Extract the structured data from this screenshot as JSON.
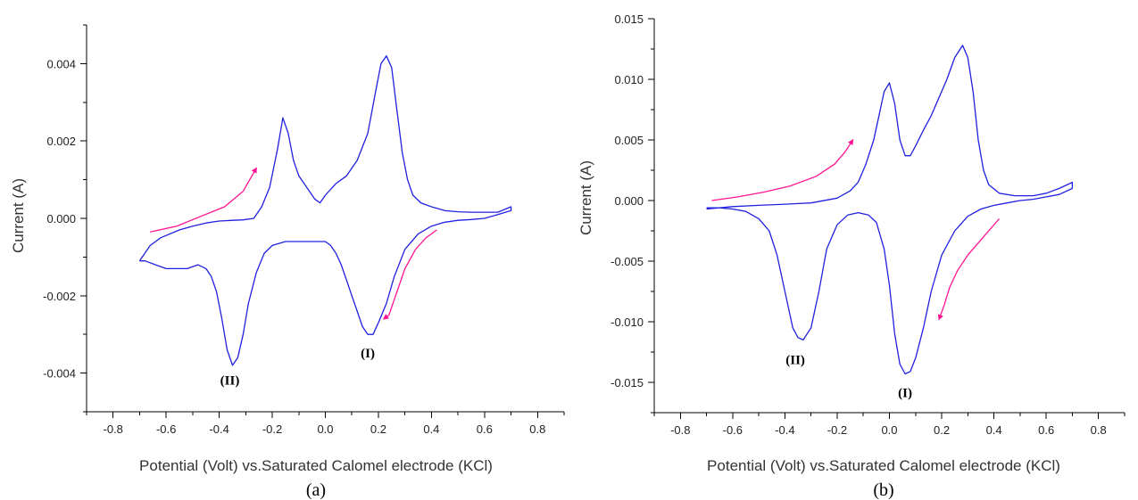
{
  "colors": {
    "curve": "#2020e0",
    "arrow": "#ff1493"
  },
  "chart_data": [
    {
      "type": "line",
      "panel_caption": "(a)",
      "xlabel": "Potential (Volt) vs.Saturated Calomel electrode (KCl)",
      "ylabel": "Current (A)",
      "xlim": [
        -0.9,
        0.9
      ],
      "ylim": [
        -0.005,
        0.005
      ],
      "x_ticks": [
        -0.8,
        -0.6,
        -0.4,
        -0.2,
        0.0,
        0.2,
        0.4,
        0.6,
        0.8
      ],
      "x_tick_labels": [
        "-0.8",
        "-0.6",
        "-0.4",
        "-0.2",
        "0.0",
        "0.2",
        "0.4",
        "0.6",
        "0.8"
      ],
      "y_ticks": [
        -0.004,
        -0.002,
        0.0,
        0.002,
        0.004
      ],
      "y_tick_labels": [
        "-0.004",
        "-0.002",
        "0.000",
        "0.002",
        "0.004"
      ],
      "annotations": [
        {
          "text": "(I)",
          "x": 0.16,
          "y": -0.0036
        },
        {
          "text": "(II)",
          "x": -0.36,
          "y": -0.0043
        }
      ],
      "series": [
        {
          "x": [
            -0.7,
            -0.66,
            -0.62,
            -0.55,
            -0.5,
            -0.45,
            -0.4,
            -0.35,
            -0.31,
            -0.27,
            -0.24,
            -0.21,
            -0.18,
            -0.16,
            -0.14,
            -0.12,
            -0.1,
            -0.08,
            -0.06,
            -0.04,
            -0.02,
            0.0,
            0.04,
            0.08,
            0.12,
            0.16,
            0.19,
            0.21,
            0.23,
            0.25,
            0.27,
            0.29,
            0.31,
            0.33,
            0.36,
            0.4,
            0.45,
            0.5,
            0.55,
            0.6,
            0.65,
            0.7,
            0.7,
            0.65,
            0.6,
            0.55,
            0.5,
            0.45,
            0.4,
            0.35,
            0.3,
            0.26,
            0.23,
            0.2,
            0.18,
            0.16,
            0.14,
            0.12,
            0.1,
            0.08,
            0.06,
            0.04,
            0.02,
            0.0,
            -0.05,
            -0.1,
            -0.15,
            -0.2,
            -0.23,
            -0.26,
            -0.29,
            -0.31,
            -0.33,
            -0.35,
            -0.37,
            -0.39,
            -0.41,
            -0.43,
            -0.45,
            -0.48,
            -0.52,
            -0.56,
            -0.6,
            -0.64,
            -0.68,
            -0.7
          ],
          "y": [
            -0.0011,
            -0.0007,
            -0.0005,
            -0.0003,
            -0.0002,
            -0.00012,
            -7e-05,
            -5e-05,
            -4e-05,
            0.0,
            0.0003,
            0.0008,
            0.0018,
            0.0026,
            0.0022,
            0.0015,
            0.0011,
            0.0009,
            0.0007,
            0.0005,
            0.0004,
            0.0006,
            0.0009,
            0.0011,
            0.0015,
            0.0022,
            0.0033,
            0.004,
            0.0042,
            0.0039,
            0.0028,
            0.0017,
            0.001,
            0.0006,
            0.0004,
            0.0003,
            0.0002,
            0.00017,
            0.00016,
            0.00016,
            0.00016,
            0.0003,
            0.0002,
            0.0001,
            0.0,
            -3e-05,
            -5e-05,
            -0.0001,
            -0.0002,
            -0.0004,
            -0.0008,
            -0.0015,
            -0.0022,
            -0.0027,
            -0.003,
            -0.003,
            -0.0028,
            -0.0024,
            -0.002,
            -0.0016,
            -0.0012,
            -0.0009,
            -0.0007,
            -0.0006,
            -0.0006,
            -0.0006,
            -0.0006,
            -0.0007,
            -0.0009,
            -0.0014,
            -0.0022,
            -0.003,
            -0.0036,
            -0.0038,
            -0.0034,
            -0.0026,
            -0.0019,
            -0.0015,
            -0.0013,
            -0.0012,
            -0.0013,
            -0.0013,
            -0.0013,
            -0.0012,
            -0.0011,
            -0.0011
          ]
        }
      ],
      "arrows": [
        {
          "x": [
            -0.66,
            -0.56,
            -0.47,
            -0.38,
            -0.31,
            -0.26
          ],
          "y": [
            -0.00035,
            -0.0002,
            5e-05,
            0.0003,
            0.0007,
            0.0013
          ]
        },
        {
          "x": [
            0.42,
            0.38,
            0.34,
            0.3,
            0.27,
            0.24,
            0.22
          ],
          "y": [
            -0.0003,
            -0.0005,
            -0.0008,
            -0.0013,
            -0.0019,
            -0.0025,
            -0.0026
          ]
        }
      ]
    },
    {
      "type": "line",
      "panel_caption": "(b)",
      "xlabel": "Potential (Volt) vs.Saturated Calomel electrode (KCl)",
      "ylabel": "Current (A)",
      "xlim": [
        -0.9,
        0.9
      ],
      "ylim": [
        -0.0175,
        0.015
      ],
      "x_ticks": [
        -0.8,
        -0.6,
        -0.4,
        -0.2,
        0.0,
        0.2,
        0.4,
        0.6,
        0.8
      ],
      "x_tick_labels": [
        "-0.8",
        "-0.6",
        "-0.4",
        "-0.2",
        "0.0",
        "0.2",
        "0.4",
        "0.6",
        "0.8"
      ],
      "y_ticks": [
        -0.015,
        -0.01,
        -0.005,
        0.0,
        0.005,
        0.01,
        0.015
      ],
      "y_tick_labels": [
        "-0.015",
        "-0.010",
        "-0.005",
        "0.000",
        "0.005",
        "0.010",
        "0.015"
      ],
      "annotations": [
        {
          "text": "(II)",
          "x": -0.36,
          "y": -0.0135
        },
        {
          "text": "(I)",
          "x": 0.06,
          "y": -0.0162
        }
      ],
      "series": [
        {
          "x": [
            -0.7,
            -0.6,
            -0.5,
            -0.4,
            -0.3,
            -0.2,
            -0.15,
            -0.12,
            -0.09,
            -0.06,
            -0.04,
            -0.02,
            0.0,
            0.02,
            0.04,
            0.06,
            0.08,
            0.1,
            0.13,
            0.16,
            0.19,
            0.22,
            0.25,
            0.28,
            0.3,
            0.32,
            0.34,
            0.36,
            0.38,
            0.42,
            0.48,
            0.55,
            0.6,
            0.65,
            0.7,
            0.7,
            0.65,
            0.6,
            0.55,
            0.5,
            0.45,
            0.4,
            0.35,
            0.3,
            0.25,
            0.2,
            0.16,
            0.13,
            0.1,
            0.08,
            0.06,
            0.04,
            0.02,
            0.0,
            -0.02,
            -0.05,
            -0.08,
            -0.12,
            -0.16,
            -0.2,
            -0.24,
            -0.27,
            -0.3,
            -0.33,
            -0.35,
            -0.37,
            -0.4,
            -0.43,
            -0.46,
            -0.5,
            -0.55,
            -0.6,
            -0.65,
            -0.7
          ],
          "y": [
            -0.0007,
            -0.0005,
            -0.0004,
            -0.0003,
            -0.0002,
            0.0002,
            0.0008,
            0.0015,
            0.003,
            0.005,
            0.007,
            0.009,
            0.0097,
            0.008,
            0.005,
            0.0037,
            0.0037,
            0.0045,
            0.0058,
            0.007,
            0.0085,
            0.01,
            0.0118,
            0.0128,
            0.0118,
            0.009,
            0.005,
            0.0025,
            0.0013,
            0.0006,
            0.0004,
            0.0004,
            0.0006,
            0.001,
            0.0015,
            0.001,
            0.0005,
            0.0003,
            0.0001,
            0.0,
            -0.0002,
            -0.0004,
            -0.0007,
            -0.0013,
            -0.0025,
            -0.0045,
            -0.0075,
            -0.0105,
            -0.013,
            -0.0141,
            -0.0143,
            -0.0135,
            -0.011,
            -0.007,
            -0.004,
            -0.0018,
            -0.0012,
            -0.001,
            -0.0012,
            -0.002,
            -0.004,
            -0.0075,
            -0.0105,
            -0.0115,
            -0.0113,
            -0.0105,
            -0.0075,
            -0.0045,
            -0.0025,
            -0.0015,
            -0.0009,
            -0.0007,
            -0.0006,
            -0.0006
          ]
        }
      ],
      "arrows": [
        {
          "x": [
            -0.68,
            -0.58,
            -0.48,
            -0.38,
            -0.28,
            -0.21,
            -0.17,
            -0.14
          ],
          "y": [
            0.0,
            0.0003,
            0.0007,
            0.0012,
            0.002,
            0.003,
            0.004,
            0.005
          ]
        },
        {
          "x": [
            0.42,
            0.36,
            0.3,
            0.26,
            0.23,
            0.21,
            0.19
          ],
          "y": [
            -0.0015,
            -0.003,
            -0.0045,
            -0.0058,
            -0.0072,
            -0.0086,
            -0.0098
          ]
        }
      ]
    }
  ]
}
